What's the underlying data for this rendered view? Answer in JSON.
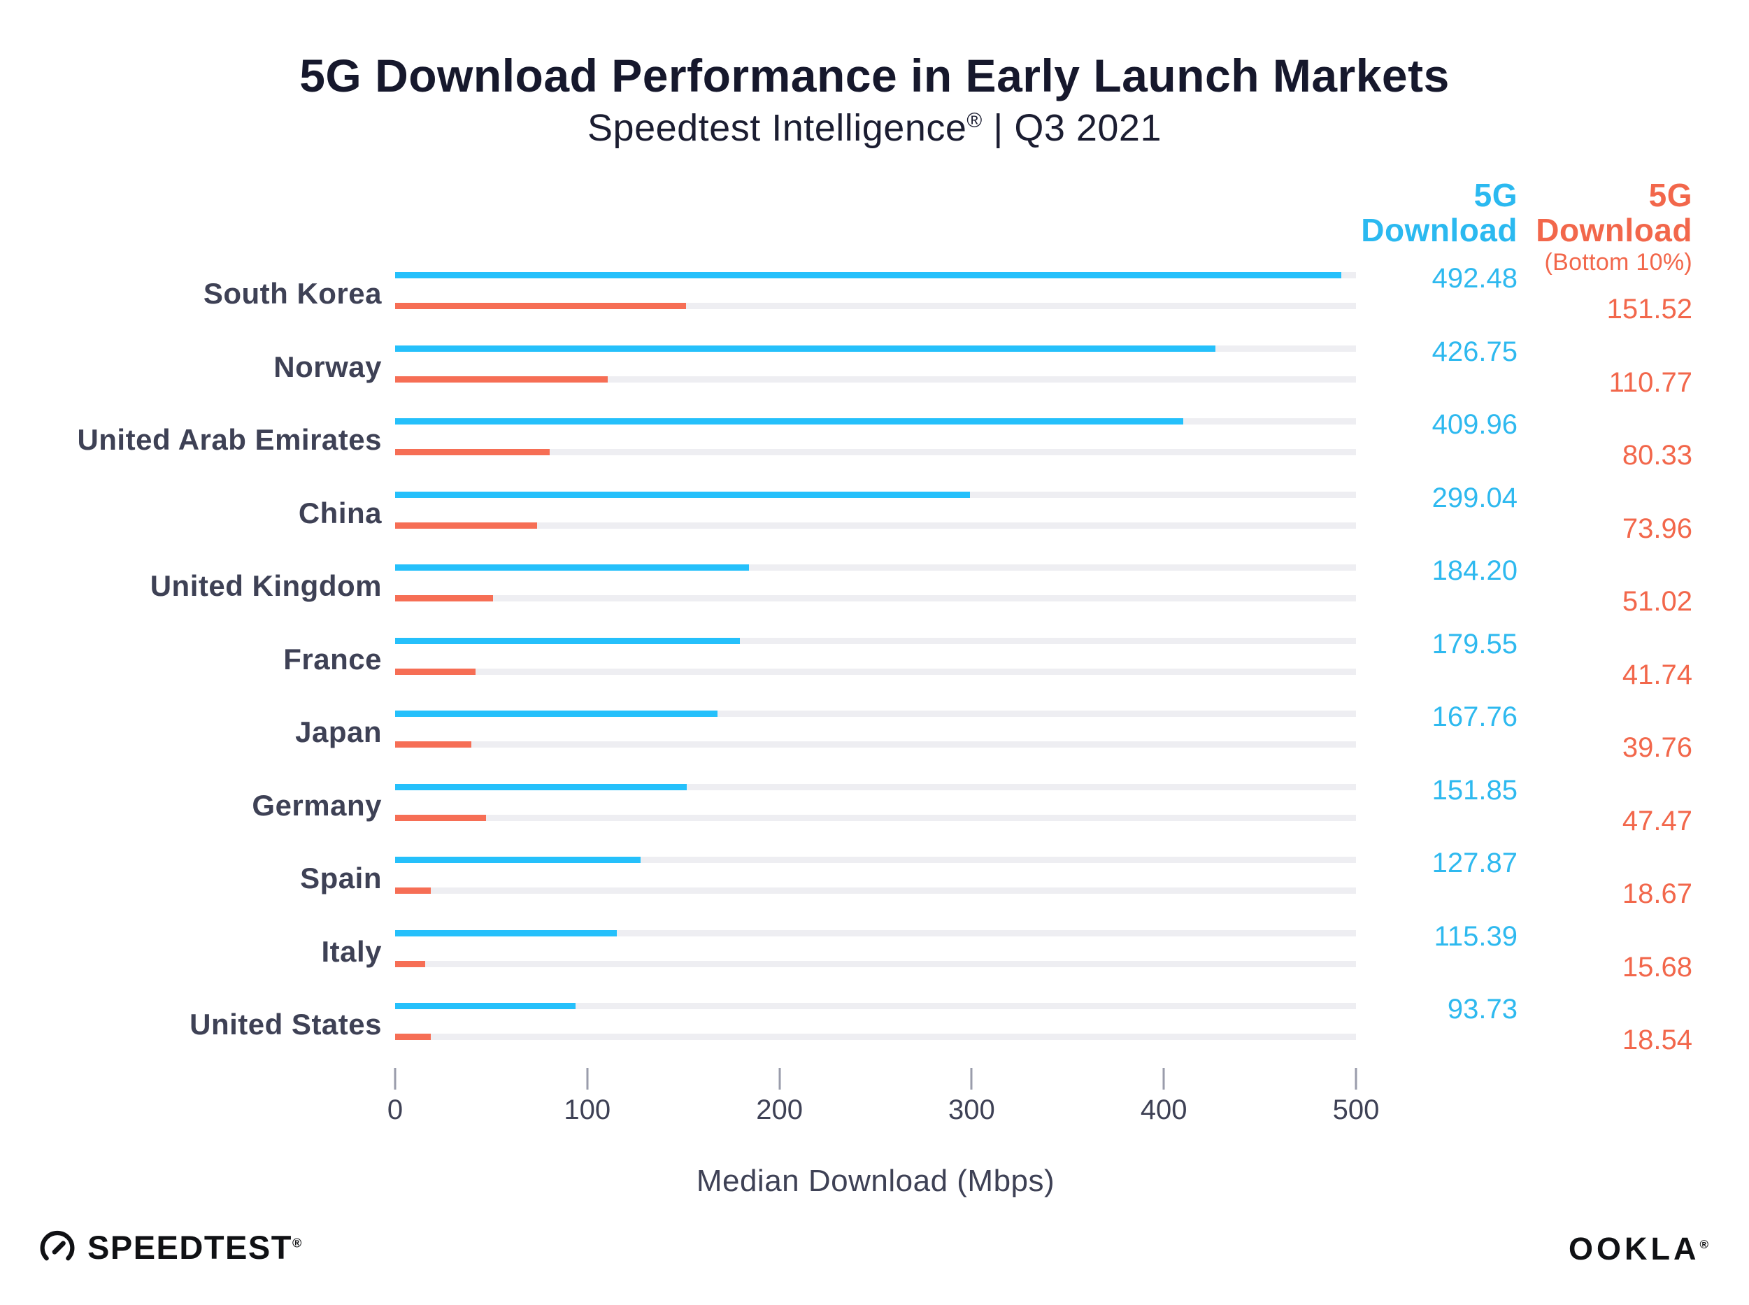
{
  "title": "5G Download Performance in Early Launch Markets",
  "subtitle": {
    "pre": "Speedtest Intelligence",
    "reg": "®",
    "post": " | Q3 2021"
  },
  "columns": {
    "download": {
      "line1": "5G",
      "line2": "Download"
    },
    "bottom10": {
      "line1": "5G",
      "line2": "Download",
      "note": "(Bottom 10%)"
    }
  },
  "chart_data": {
    "type": "bar",
    "orientation": "horizontal",
    "title": "5G Download Performance in Early Launch Markets",
    "subtitle": "Speedtest Intelligence® | Q3 2021",
    "categories": [
      "South Korea",
      "Norway",
      "United Arab Emirates",
      "China",
      "United Kingdom",
      "France",
      "Japan",
      "Germany",
      "Spain",
      "Italy",
      "United States"
    ],
    "series": [
      {
        "name": "5G Download",
        "color": "#25c0fb",
        "values": [
          492.48,
          426.75,
          409.96,
          299.04,
          184.2,
          179.55,
          167.76,
          151.85,
          127.87,
          115.39,
          93.73
        ]
      },
      {
        "name": "5G Download (Bottom 10%)",
        "color": "#f66e55",
        "values": [
          151.52,
          110.77,
          80.33,
          73.96,
          51.02,
          41.74,
          39.76,
          47.47,
          18.67,
          15.68,
          18.54
        ]
      }
    ],
    "xlabel": "Median Download (Mbps)",
    "xlim": [
      0,
      500
    ],
    "xticks": [
      0,
      100,
      200,
      300,
      400,
      500
    ],
    "grid": false,
    "legend_position": "column headers at right",
    "value_label_format": "2 decimals"
  },
  "colors": {
    "blue_bar": "#25c0fb",
    "blue_text": "#2eb9ef",
    "orange_bar": "#f66e55",
    "orange_text": "#f2674b",
    "bar_track": "#eeeef2",
    "title_navy": "#16182c",
    "label_slate": "#3e4155",
    "tick_gray": "#9a9cab",
    "logo_black": "#101114"
  },
  "footer": {
    "speedtest": {
      "label": "SPEEDTEST",
      "reg": "®"
    },
    "ookla": {
      "label": "OOKLA",
      "reg": "®"
    }
  }
}
